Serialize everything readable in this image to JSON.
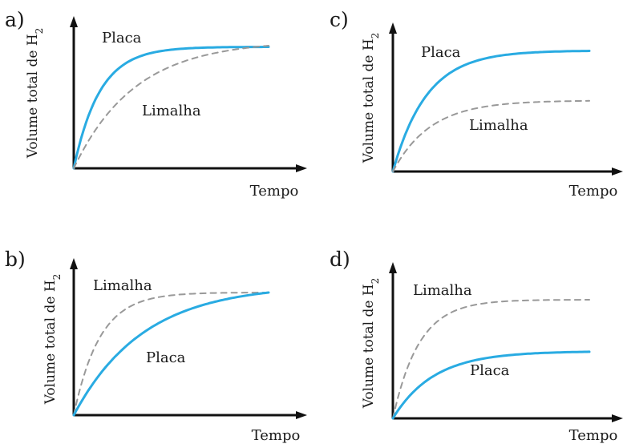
{
  "chart_data": [
    {
      "panel": "a)",
      "type": "line",
      "ylabel": "Volume total de H",
      "ylabel_sub": "2",
      "xlabel": "Tempo",
      "xlim": [
        0,
        1
      ],
      "ylim": [
        0,
        1
      ],
      "series": [
        {
          "name": "Placa",
          "color": "#29abe2",
          "dash": false,
          "plateau": 0.99,
          "rate": 7.5
        },
        {
          "name": "Limalha",
          "color": "#999999",
          "dash": true,
          "plateau": 1.0,
          "rate": 3.2
        }
      ]
    },
    {
      "panel": "c)",
      "type": "line",
      "ylabel": "Volume total de H",
      "ylabel_sub": "2",
      "xlabel": "Tempo",
      "xlim": [
        0,
        1
      ],
      "ylim": [
        0,
        1
      ],
      "series": [
        {
          "name": "Placa",
          "color": "#29abe2",
          "dash": false,
          "plateau": 0.99,
          "rate": 5.8
        },
        {
          "name": "Limalha",
          "color": "#999999",
          "dash": true,
          "plateau": 0.58,
          "rate": 5.2
        }
      ]
    },
    {
      "panel": "b)",
      "type": "line",
      "ylabel": "Volume total de H",
      "ylabel_sub": "2",
      "xlabel": "Tempo",
      "xlim": [
        0,
        1
      ],
      "ylim": [
        0,
        1
      ],
      "series": [
        {
          "name": "Limalha",
          "color": "#999999",
          "dash": true,
          "plateau": 1.0,
          "rate": 7.5
        },
        {
          "name": "Placa",
          "color": "#29abe2",
          "dash": false,
          "plateau": 1.0,
          "rate": 2.8
        }
      ]
    },
    {
      "panel": "d)",
      "type": "line",
      "ylabel": "Volume total de H",
      "ylabel_sub": "2",
      "xlabel": "Tempo",
      "xlim": [
        0,
        1
      ],
      "ylim": [
        0,
        1
      ],
      "series": [
        {
          "name": "Limalha",
          "color": "#999999",
          "dash": true,
          "plateau": 0.98,
          "rate": 7.5
        },
        {
          "name": "Placa",
          "color": "#29abe2",
          "dash": false,
          "plateau": 0.55,
          "rate": 4.8
        }
      ]
    }
  ]
}
